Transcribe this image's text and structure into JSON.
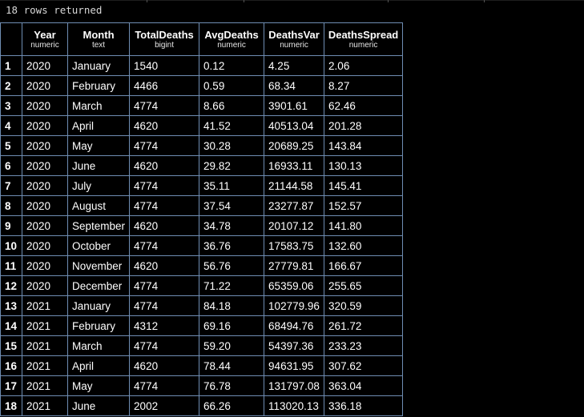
{
  "status_text": "18 rows returned",
  "columns": [
    {
      "name": "",
      "type": ""
    },
    {
      "name": "Year",
      "type": "numeric"
    },
    {
      "name": "Month",
      "type": "text"
    },
    {
      "name": "TotalDeaths",
      "type": "bigint"
    },
    {
      "name": "AvgDeaths",
      "type": "numeric"
    },
    {
      "name": "DeathsVar",
      "type": "numeric"
    },
    {
      "name": "DeathsSpread",
      "type": "numeric"
    }
  ],
  "rows": [
    [
      "1",
      "2020",
      "January",
      "1540",
      "0.12",
      "4.25",
      "2.06"
    ],
    [
      "2",
      "2020",
      "February",
      "4466",
      "0.59",
      "68.34",
      "8.27"
    ],
    [
      "3",
      "2020",
      "March",
      "4774",
      "8.66",
      "3901.61",
      "62.46"
    ],
    [
      "4",
      "2020",
      "April",
      "4620",
      "41.52",
      "40513.04",
      "201.28"
    ],
    [
      "5",
      "2020",
      "May",
      "4774",
      "30.28",
      "20689.25",
      "143.84"
    ],
    [
      "6",
      "2020",
      "June",
      "4620",
      "29.82",
      "16933.11",
      "130.13"
    ],
    [
      "7",
      "2020",
      "July",
      "4774",
      "35.11",
      "21144.58",
      "145.41"
    ],
    [
      "8",
      "2020",
      "August",
      "4774",
      "37.54",
      "23277.87",
      "152.57"
    ],
    [
      "9",
      "2020",
      "September",
      "4620",
      "34.78",
      "20107.12",
      "141.80"
    ],
    [
      "10",
      "2020",
      "October",
      "4774",
      "36.76",
      "17583.75",
      "132.60"
    ],
    [
      "11",
      "2020",
      "November",
      "4620",
      "56.76",
      "27779.81",
      "166.67"
    ],
    [
      "12",
      "2020",
      "December",
      "4774",
      "71.22",
      "65359.06",
      "255.65"
    ],
    [
      "13",
      "2021",
      "January",
      "4774",
      "84.18",
      "102779.96",
      "320.59"
    ],
    [
      "14",
      "2021",
      "February",
      "4312",
      "69.16",
      "68494.76",
      "261.72"
    ],
    [
      "15",
      "2021",
      "March",
      "4774",
      "59.20",
      "54397.36",
      "233.23"
    ],
    [
      "16",
      "2021",
      "April",
      "4620",
      "78.44",
      "94631.95",
      "307.62"
    ],
    [
      "17",
      "2021",
      "May",
      "4774",
      "76.78",
      "131797.08",
      "363.04"
    ],
    [
      "18",
      "2021",
      "June",
      "2002",
      "66.26",
      "113020.13",
      "336.18"
    ]
  ],
  "colors": {
    "background": "#000000",
    "text": "#ffffff",
    "grid": "#6f8db3"
  }
}
